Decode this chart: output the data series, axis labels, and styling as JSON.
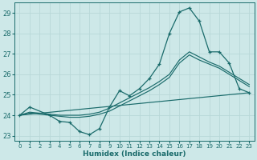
{
  "xlabel": "Humidex (Indice chaleur)",
  "background_color": "#cde8e8",
  "line_color": "#1a6b6b",
  "grid_color": "#b8d8d8",
  "xlim": [
    -0.5,
    23.5
  ],
  "ylim": [
    22.75,
    29.5
  ],
  "xticks": [
    0,
    1,
    2,
    3,
    4,
    5,
    6,
    7,
    8,
    9,
    10,
    11,
    12,
    13,
    14,
    15,
    16,
    17,
    18,
    19,
    20,
    21,
    22,
    23
  ],
  "yticks": [
    23,
    24,
    25,
    26,
    27,
    28,
    29
  ],
  "main_x": [
    0,
    1,
    3,
    4,
    5,
    6,
    7,
    8,
    9,
    10,
    11,
    12,
    13,
    14,
    15,
    16,
    17,
    18,
    19,
    20,
    21,
    22,
    23
  ],
  "main_y": [
    24.0,
    24.4,
    24.0,
    23.7,
    23.65,
    23.2,
    23.05,
    23.35,
    24.4,
    25.2,
    24.95,
    25.3,
    25.8,
    26.5,
    28.0,
    29.05,
    29.25,
    28.6,
    27.1,
    27.1,
    26.55,
    25.3,
    25.1
  ],
  "smooth1_x": [
    0,
    1,
    2,
    3,
    4,
    5,
    6,
    7,
    8,
    9,
    10,
    11,
    12,
    13,
    14,
    15,
    16,
    17,
    18,
    19,
    20,
    21,
    22,
    23
  ],
  "smooth1_y": [
    24.0,
    24.15,
    24.1,
    24.05,
    24.0,
    24.0,
    24.0,
    24.05,
    24.15,
    24.35,
    24.6,
    24.85,
    25.1,
    25.35,
    25.65,
    26.0,
    26.7,
    27.1,
    26.85,
    26.6,
    26.4,
    26.1,
    25.8,
    25.5
  ],
  "smooth2_x": [
    0,
    1,
    2,
    3,
    4,
    5,
    6,
    7,
    8,
    9,
    10,
    11,
    12,
    13,
    14,
    15,
    16,
    17,
    18,
    19,
    20,
    21,
    22,
    23
  ],
  "smooth2_y": [
    24.0,
    24.1,
    24.05,
    24.0,
    23.95,
    23.9,
    23.9,
    23.95,
    24.05,
    24.2,
    24.45,
    24.7,
    24.95,
    25.2,
    25.5,
    25.85,
    26.55,
    26.95,
    26.7,
    26.5,
    26.3,
    26.0,
    25.7,
    25.4
  ],
  "trend_x": [
    0,
    23
  ],
  "trend_y": [
    24.0,
    25.1
  ]
}
